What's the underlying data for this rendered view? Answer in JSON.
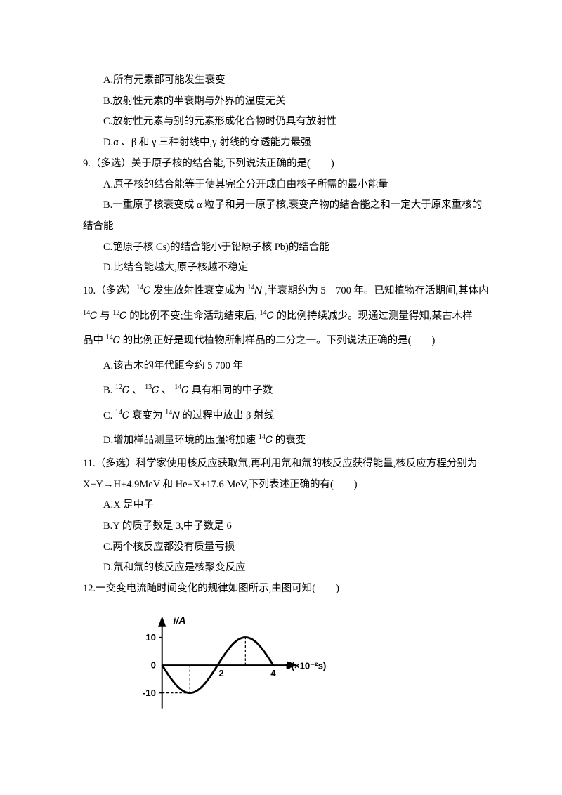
{
  "questions": {
    "q8_options": {
      "A": "A.所有元素都可能发生衰变",
      "B": "B.放射性元素的半衰期与外界的温度无关",
      "C": "C.放射性元素与别的元素形成化合物时仍具有放射性",
      "D": "D.α 、β 和 γ 三种射线中,γ 射线的穿透能力最强"
    },
    "q9": {
      "stem": "9.（多选）关于原子核的结合能,下列说法正确的是(　　)",
      "A": "A.原子核的结合能等于使其完全分开成自由核子所需的最小能量",
      "B_part1": "B.一重原子核衰变成 α 粒子和另一原子核,衰变产物的结合能之和一定大于原来重核的",
      "B_part2": "结合能",
      "C": "C.铯原子核 Cs)的结合能小于铅原子核 Pb)的结合能",
      "D": "D.比结合能越大,原子核越不稳定"
    },
    "q10": {
      "stem_part1_pre": "10.（多选）",
      "stem_part1_mid": " 发生放射性衰变成为 ",
      "stem_part1_post": " ,半衰期约为 5　700 年。已知植物存活期间,其体内",
      "stem_part2_a": " 与 ",
      "stem_part2_b": " 的比例不变;生命活动结束后, ",
      "stem_part2_c": " 的比例持续减少。现通过测量得知,某古木样",
      "stem_part3_pre": "品中 ",
      "stem_part3_post": " 的比例正好是现代植物所制样品的二分之一。下列说法正确的是(　　)",
      "A": "A.该古木的年代距今约 5 700 年",
      "B_pre": "B. ",
      "B_sep": " 、 ",
      "B_post": " 具有相同的中子数",
      "C_pre": "C. ",
      "C_mid": " 衰变为 ",
      "C_post": " 的过程中放出 β 射线",
      "D_pre": "D.增加样品测量环境的压强将加速 ",
      "D_post": " 的衰变",
      "iso": {
        "C14": {
          "sup": "14",
          "sym": "𝐶"
        },
        "N14": {
          "sup": "14",
          "sym": "𝑁"
        },
        "C12": {
          "sup": "12",
          "sym": "𝐶"
        },
        "C13": {
          "sup": "13",
          "sym": "𝐶"
        }
      }
    },
    "q11": {
      "stem_line1": "11.（多选）科学家使用核反应获取氚,再利用氘和氚的核反应获得能量,核反应方程分别为",
      "stem_line2": "X+Y→H+4.9MeV 和 He+X+17.6 MeV,下列表述正确的有(　　)",
      "A": "A.X 是中子",
      "B": "B.Y 的质子数是 3,中子数是 6",
      "C": "C.两个核反应都没有质量亏损",
      "D": "D.氘和氚的核反应是核聚变反应"
    },
    "q12": {
      "stem": "12.一交变电流随时间变化的规律如图所示,由图可知(　　)"
    }
  },
  "figure": {
    "y_label": "i/A",
    "x_label": "t/(×10⁻²s)",
    "y_ticks": [
      "10",
      "0",
      "-10"
    ],
    "x_ticks": [
      "2",
      "4"
    ],
    "colors": {
      "axis": "#000000",
      "curve": "#000000",
      "dash": "#000000",
      "background": "#ffffff"
    },
    "stroke": {
      "axis_width": 2.2,
      "curve_width": 3.2,
      "dash_pattern": "4,3"
    },
    "amplitude": 10,
    "period_units": 4
  }
}
